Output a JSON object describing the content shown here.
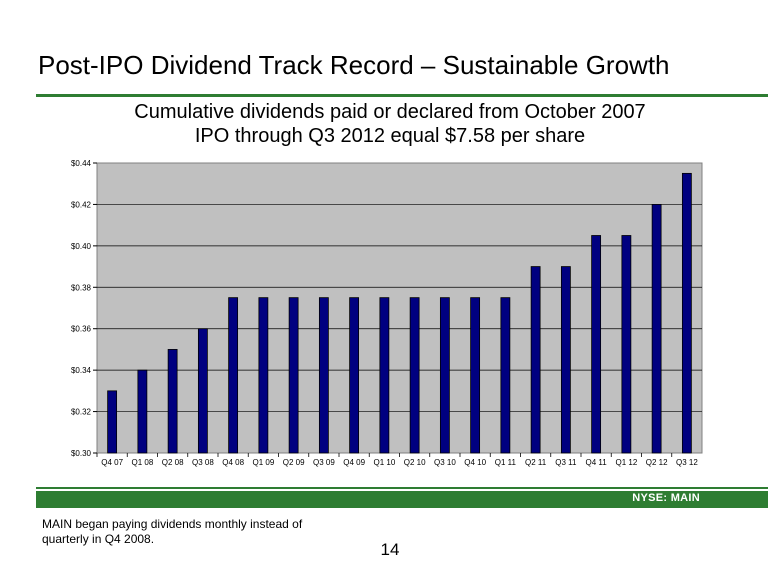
{
  "slide": {
    "title": "Post-IPO Dividend Track Record – Sustainable Growth",
    "subtitle_line1": "Cumulative dividends paid or declared from October 2007",
    "subtitle_line2": "IPO through Q3 2012 equal $7.58 per share",
    "ticker": "NYSE:  MAIN",
    "footnote": "MAIN began paying dividends monthly instead of quarterly in Q4 2008.",
    "page_number": "14"
  },
  "colors": {
    "accent_green": "#2e7d32",
    "plot_background": "#c0c0c0",
    "bar_fill": "#000080"
  },
  "chart_data": {
    "type": "bar",
    "title": "",
    "xlabel": "",
    "ylabel": "",
    "ylim": [
      0.3,
      0.44
    ],
    "yticks": [
      0.3,
      0.32,
      0.34,
      0.36,
      0.38,
      0.4,
      0.42,
      0.44
    ],
    "ytick_labels": [
      "$0.30",
      "$0.32",
      "$0.34",
      "$0.36",
      "$0.38",
      "$0.40",
      "$0.42",
      "$0.44"
    ],
    "grid": true,
    "legend": "none",
    "categories": [
      "Q4 07",
      "Q1 08",
      "Q2 08",
      "Q3 08",
      "Q4 08",
      "Q1 09",
      "Q2 09",
      "Q3 09",
      "Q4 09",
      "Q1 10",
      "Q2 10",
      "Q3 10",
      "Q4 10",
      "Q1 11",
      "Q2 11",
      "Q3 11",
      "Q4 11",
      "Q1 12",
      "Q2 12",
      "Q3 12"
    ],
    "values": [
      0.33,
      0.34,
      0.35,
      0.36,
      0.375,
      0.375,
      0.375,
      0.375,
      0.375,
      0.375,
      0.375,
      0.375,
      0.375,
      0.375,
      0.39,
      0.39,
      0.405,
      0.405,
      0.42,
      0.435
    ]
  }
}
